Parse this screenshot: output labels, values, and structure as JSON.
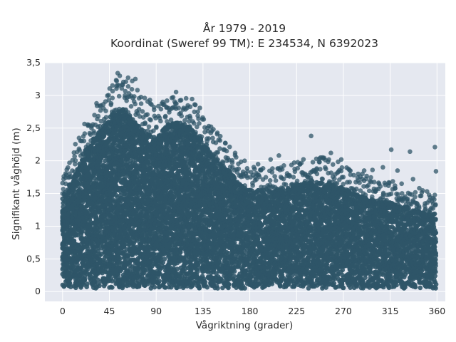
{
  "chart_data": {
    "type": "scatter",
    "title_lines": [
      "År 1979 - 2019",
      "Koordinat (Sweref 99 TM): E 234534, N 6392023"
    ],
    "xlabel": "Vågriktning (grader)",
    "ylabel": "Signifikant våghöjd (m)",
    "xlim": [
      -17,
      368
    ],
    "ylim": [
      -0.15,
      3.5
    ],
    "xticks": [
      0,
      45,
      90,
      135,
      180,
      225,
      270,
      315,
      360
    ],
    "xtick_labels": [
      "0",
      "45",
      "90",
      "135",
      "180",
      "225",
      "270",
      "315",
      "360"
    ],
    "yticks": [
      0,
      0.5,
      1,
      1.5,
      2,
      2.5,
      3,
      3.5
    ],
    "ytick_labels": [
      "0",
      "0,5",
      "1",
      "1,5",
      "2",
      "2,5",
      "3",
      "3,5"
    ],
    "grid": true,
    "plot_background": "#e5e8f0",
    "marker_color": "#2f5568",
    "point_density": "dense, continuous coverage from 0 to 360 degrees",
    "upper_envelope": [
      {
        "x": 0,
        "y": 1.45
      },
      {
        "x": 10,
        "y": 1.75
      },
      {
        "x": 20,
        "y": 2.1
      },
      {
        "x": 30,
        "y": 2.35
      },
      {
        "x": 40,
        "y": 2.55
      },
      {
        "x": 50,
        "y": 2.75
      },
      {
        "x": 60,
        "y": 2.8
      },
      {
        "x": 70,
        "y": 2.6
      },
      {
        "x": 80,
        "y": 2.45
      },
      {
        "x": 90,
        "y": 2.35
      },
      {
        "x": 100,
        "y": 2.55
      },
      {
        "x": 110,
        "y": 2.6
      },
      {
        "x": 120,
        "y": 2.55
      },
      {
        "x": 130,
        "y": 2.4
      },
      {
        "x": 140,
        "y": 2.2
      },
      {
        "x": 150,
        "y": 2.0
      },
      {
        "x": 160,
        "y": 1.85
      },
      {
        "x": 170,
        "y": 1.65
      },
      {
        "x": 180,
        "y": 1.55
      },
      {
        "x": 200,
        "y": 1.55
      },
      {
        "x": 220,
        "y": 1.6
      },
      {
        "x": 240,
        "y": 1.7
      },
      {
        "x": 260,
        "y": 1.65
      },
      {
        "x": 280,
        "y": 1.5
      },
      {
        "x": 300,
        "y": 1.4
      },
      {
        "x": 320,
        "y": 1.35
      },
      {
        "x": 340,
        "y": 1.25
      },
      {
        "x": 360,
        "y": 1.2
      }
    ],
    "outliers": [
      {
        "x": 53,
        "y": 3.34
      },
      {
        "x": 55,
        "y": 3.3
      },
      {
        "x": 63,
        "y": 3.27
      },
      {
        "x": 67,
        "y": 3.22
      },
      {
        "x": 70,
        "y": 3.25
      },
      {
        "x": 48,
        "y": 3.15
      },
      {
        "x": 52,
        "y": 3.14
      },
      {
        "x": 60,
        "y": 3.0
      },
      {
        "x": 64,
        "y": 2.98
      },
      {
        "x": 72,
        "y": 3.08
      },
      {
        "x": 79,
        "y": 2.96
      },
      {
        "x": 84,
        "y": 2.93
      },
      {
        "x": 88,
        "y": 2.78
      },
      {
        "x": 100,
        "y": 2.82
      },
      {
        "x": 105,
        "y": 2.8
      },
      {
        "x": 127,
        "y": 2.86
      },
      {
        "x": 130,
        "y": 2.75
      },
      {
        "x": 145,
        "y": 2.48
      },
      {
        "x": 150,
        "y": 2.32
      },
      {
        "x": 157,
        "y": 2.05
      },
      {
        "x": 30,
        "y": 2.45
      },
      {
        "x": 34,
        "y": 2.52
      },
      {
        "x": 26,
        "y": 2.42
      },
      {
        "x": 20,
        "y": 2.1
      },
      {
        "x": 12,
        "y": 1.95
      },
      {
        "x": 7,
        "y": 1.75
      },
      {
        "x": 3,
        "y": 1.65
      },
      {
        "x": 1,
        "y": 1.72
      },
      {
        "x": 175,
        "y": 2.0
      },
      {
        "x": 188,
        "y": 1.95
      },
      {
        "x": 200,
        "y": 2.02
      },
      {
        "x": 208,
        "y": 2.08
      },
      {
        "x": 239,
        "y": 2.38
      },
      {
        "x": 244,
        "y": 2.03
      },
      {
        "x": 250,
        "y": 2.05
      },
      {
        "x": 258,
        "y": 2.12
      },
      {
        "x": 268,
        "y": 2.02
      },
      {
        "x": 290,
        "y": 1.85
      },
      {
        "x": 298,
        "y": 1.86
      },
      {
        "x": 308,
        "y": 1.9
      },
      {
        "x": 316,
        "y": 2.17
      },
      {
        "x": 322,
        "y": 1.85
      },
      {
        "x": 334,
        "y": 2.14
      },
      {
        "x": 337,
        "y": 1.72
      },
      {
        "x": 343,
        "y": 1.58
      },
      {
        "x": 358,
        "y": 2.21
      },
      {
        "x": 359,
        "y": 1.84
      },
      {
        "x": 356,
        "y": 1.43
      },
      {
        "x": 355,
        "y": 1.38
      },
      {
        "x": 230,
        "y": 1.82
      },
      {
        "x": 222,
        "y": 1.75
      },
      {
        "x": 185,
        "y": 1.7
      },
      {
        "x": 280,
        "y": 1.78
      },
      {
        "x": 326,
        "y": 1.65
      }
    ]
  }
}
